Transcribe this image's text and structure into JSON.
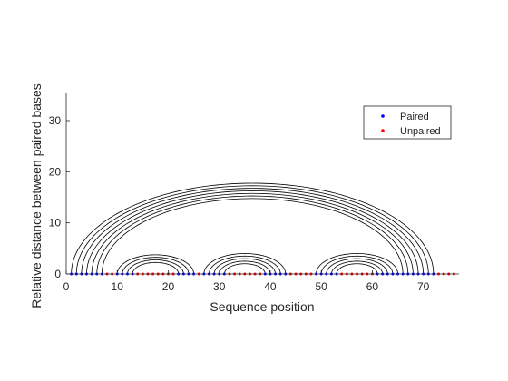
{
  "chart_data": {
    "type": "arc-diagram",
    "title": "",
    "xlabel": "Sequence position",
    "ylabel": "Relative distance between paired bases",
    "xlim": [
      0,
      77
    ],
    "ylim": [
      0,
      35.5
    ],
    "xticks": [
      0,
      10,
      20,
      30,
      40,
      50,
      60,
      70
    ],
    "yticks": [
      0,
      10,
      20,
      30
    ],
    "sequence_length": 76,
    "legend": {
      "placement": "top-right",
      "entries": [
        {
          "label": "Paired",
          "color": "#0000ff"
        },
        {
          "label": "Unpaired",
          "color": "#ff0000"
        }
      ]
    },
    "pairs": [
      [
        1,
        72
      ],
      [
        2,
        71
      ],
      [
        3,
        70
      ],
      [
        4,
        69
      ],
      [
        5,
        68
      ],
      [
        6,
        67
      ],
      [
        7,
        66
      ],
      [
        10,
        25
      ],
      [
        11,
        24
      ],
      [
        12,
        23
      ],
      [
        13,
        22
      ],
      [
        27,
        43
      ],
      [
        28,
        42
      ],
      [
        29,
        41
      ],
      [
        30,
        40
      ],
      [
        31,
        39
      ],
      [
        49,
        65
      ],
      [
        50,
        64
      ],
      [
        51,
        63
      ],
      [
        52,
        62
      ],
      [
        53,
        61
      ]
    ],
    "colors": {
      "paired": "#0000ff",
      "unpaired": "#ff0000",
      "arc": "#000000",
      "axis": "#262626"
    }
  }
}
